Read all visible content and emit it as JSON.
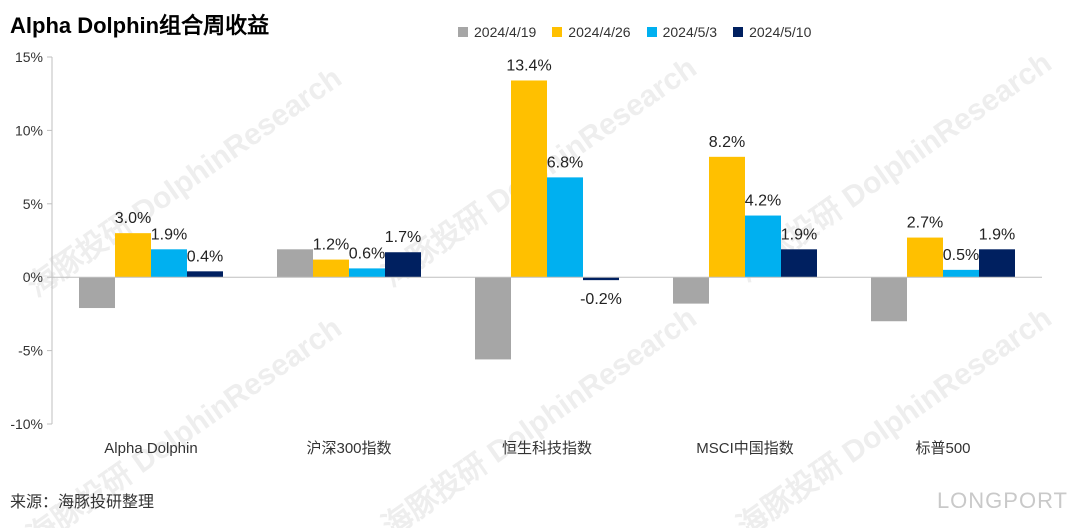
{
  "title": "Alpha Dolphin组合周收益",
  "source": "来源：海豚投研整理",
  "brand": "LONGPORT",
  "watermark": "海豚投研 DolphinResearch",
  "chart_data": {
    "type": "bar",
    "title": "Alpha Dolphin组合周收益",
    "xlabel": "",
    "ylabel": "",
    "ylim": [
      -10,
      15
    ],
    "yticks": [
      15,
      10,
      5,
      0,
      -5,
      -10
    ],
    "ytick_labels": [
      "15%",
      "10%",
      "5%",
      "0%",
      "-5%",
      "-10%"
    ],
    "grid": false,
    "legend_position": "top",
    "categories": [
      "Alpha Dolphin",
      "沪深300指数",
      "恒生科技指数",
      "MSCI中国指数",
      "标普500"
    ],
    "series": [
      {
        "name": "2024/4/19",
        "color": "#a6a6a6",
        "values": [
          -2.1,
          1.9,
          -5.6,
          -1.8,
          -3.0
        ],
        "labels": [
          "",
          "",
          "",
          "",
          ""
        ]
      },
      {
        "name": "2024/4/26",
        "color": "#ffc000",
        "values": [
          3.0,
          1.2,
          13.4,
          8.2,
          2.7
        ],
        "labels": [
          "3.0%",
          "1.2%",
          "13.4%",
          "8.2%",
          "2.7%"
        ]
      },
      {
        "name": "2024/5/3",
        "color": "#00b0f0",
        "values": [
          1.9,
          0.6,
          6.8,
          4.2,
          0.5
        ],
        "labels": [
          "1.9%",
          "0.6%",
          "6.8%",
          "4.2%",
          "0.5%"
        ]
      },
      {
        "name": "2024/5/10",
        "color": "#002060",
        "values": [
          0.4,
          1.7,
          -0.2,
          1.9,
          1.9
        ],
        "labels": [
          "0.4%",
          "1.7%",
          "-0.2%",
          "1.9%",
          "1.9%"
        ]
      }
    ]
  }
}
